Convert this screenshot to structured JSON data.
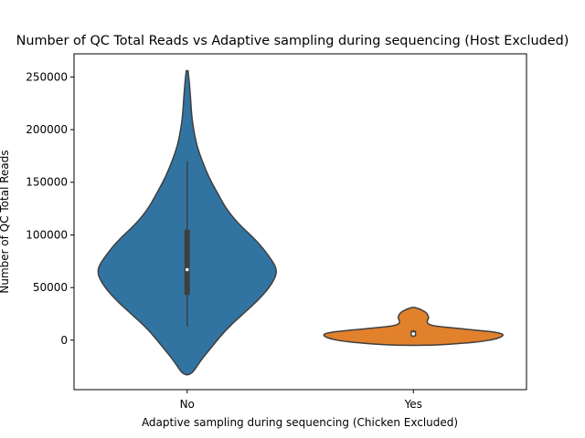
{
  "chart_data": {
    "type": "violin",
    "title": "Number of QC Total Reads vs Adaptive sampling during sequencing (Host Excluded)",
    "xlabel": "Adaptive sampling during sequencing (Chicken Excluded)",
    "ylabel": "Number of QC Total Reads",
    "ylim": [
      -47000,
      272000
    ],
    "yticks": [
      0,
      50000,
      100000,
      150000,
      200000,
      250000
    ],
    "ytick_labels": [
      "0",
      "50000",
      "100000",
      "150000",
      "200000",
      "250000"
    ],
    "grid": false,
    "categories": [
      "No",
      "Yes"
    ],
    "series": [
      {
        "category": "No",
        "color": "#3274a1",
        "median": 67000,
        "q1": 43000,
        "q3": 105000,
        "whisker_low": 13000,
        "whisker_high": 170000,
        "min_extent": -33000,
        "max_extent": 256000,
        "density": [
          [
            -33000,
            0.01
          ],
          [
            -20000,
            0.03
          ],
          [
            -5000,
            0.06
          ],
          [
            10000,
            0.09
          ],
          [
            25000,
            0.13
          ],
          [
            40000,
            0.17
          ],
          [
            55000,
            0.2
          ],
          [
            67000,
            0.21
          ],
          [
            80000,
            0.19
          ],
          [
            95000,
            0.16
          ],
          [
            110000,
            0.12
          ],
          [
            125000,
            0.09
          ],
          [
            140000,
            0.07
          ],
          [
            155000,
            0.05
          ],
          [
            170000,
            0.035
          ],
          [
            185000,
            0.022
          ],
          [
            200000,
            0.015
          ],
          [
            215000,
            0.01
          ],
          [
            230000,
            0.008
          ],
          [
            245000,
            0.005
          ],
          [
            256000,
            0.002
          ]
        ]
      },
      {
        "category": "Yes",
        "color": "#e1812c",
        "median": 6000,
        "q1": 3500,
        "q3": 9000,
        "whisker_low": 3000,
        "whisker_high": 9500,
        "min_extent": -5000,
        "max_extent": 31000,
        "density": [
          [
            -5000,
            0.2
          ],
          [
            -3000,
            0.55
          ],
          [
            -1000,
            0.78
          ],
          [
            1000,
            0.9
          ],
          [
            3000,
            0.97
          ],
          [
            5500,
            1.0
          ],
          [
            7500,
            0.92
          ],
          [
            9500,
            0.7
          ],
          [
            11500,
            0.45
          ],
          [
            13500,
            0.22
          ],
          [
            15500,
            0.16
          ],
          [
            17500,
            0.15
          ],
          [
            19500,
            0.16
          ],
          [
            21500,
            0.17
          ],
          [
            23500,
            0.16
          ],
          [
            25500,
            0.15
          ],
          [
            27500,
            0.12
          ],
          [
            29500,
            0.07
          ],
          [
            31000,
            0.02
          ]
        ]
      }
    ]
  }
}
